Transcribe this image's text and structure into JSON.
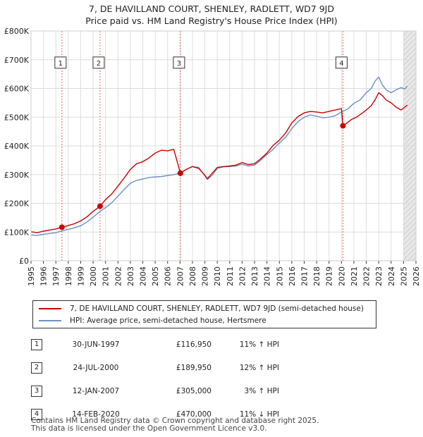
{
  "title_line1": "7, DE HAVILLAND COURT, SHENLEY, RADLETT, WD7 9JD",
  "title_line2": "Price paid vs. HM Land Registry's House Price Index (HPI)",
  "chart_data": {
    "type": "line",
    "title": "7, DE HAVILLAND COURT, SHENLEY, RADLETT, WD7 9JD — Price paid vs. HM Land Registry's House Price Index (HPI)",
    "xlim": [
      1995,
      2026
    ],
    "ylim": [
      0,
      800000
    ],
    "x_ticks": [
      1995,
      1996,
      1997,
      1998,
      1999,
      2000,
      2001,
      2002,
      2003,
      2004,
      2005,
      2006,
      2007,
      2008,
      2009,
      2010,
      2011,
      2012,
      2013,
      2014,
      2015,
      2016,
      2017,
      2018,
      2019,
      2020,
      2021,
      2022,
      2023,
      2024,
      2025,
      2026
    ],
    "y_ticks": [
      0,
      100000,
      200000,
      300000,
      400000,
      500000,
      600000,
      700000,
      800000
    ],
    "y_tick_labels": [
      "£0",
      "£100K",
      "£200K",
      "£300K",
      "£400K",
      "£500K",
      "£600K",
      "£700K",
      "£800K"
    ],
    "colors": {
      "property": "#cc0000",
      "hpi": "#6a90c0",
      "future_shade": "#e8e8e8"
    },
    "series": [
      {
        "name": "7, DE HAVILLAND COURT, SHENLEY, RADLETT, WD7 9JD (semi-detached house)",
        "x": [
          1995.0,
          1995.5,
          1996.0,
          1996.5,
          1997.0,
          1997.49,
          1998.0,
          1998.5,
          1999.0,
          1999.5,
          2000.0,
          2000.56,
          2001.0,
          2001.5,
          2002.0,
          2002.5,
          2003.0,
          2003.5,
          2004.0,
          2004.5,
          2005.0,
          2005.5,
          2006.0,
          2006.5,
          2007.03,
          2007.5,
          2008.0,
          2008.5,
          2009.0,
          2009.2,
          2009.6,
          2010.0,
          2010.5,
          2011.0,
          2011.5,
          2012.0,
          2012.5,
          2013.0,
          2013.5,
          2014.0,
          2014.5,
          2015.0,
          2015.5,
          2016.0,
          2016.5,
          2017.0,
          2017.5,
          2018.0,
          2018.5,
          2019.0,
          2019.5,
          2020.0,
          2020.12,
          2020.4,
          2020.8,
          2021.2,
          2021.6,
          2022.0,
          2022.4,
          2022.7,
          2023.0,
          2023.3,
          2023.6,
          2024.0,
          2024.4,
          2024.8,
          2025.1,
          2025.3
        ],
        "y": [
          101000,
          98000,
          103000,
          107000,
          111000,
          116950,
          123000,
          129000,
          139000,
          153000,
          172000,
          189950,
          213000,
          233000,
          260000,
          288000,
          318000,
          338000,
          345000,
          358000,
          375000,
          385000,
          383000,
          388000,
          305000,
          318000,
          328000,
          322000,
          298000,
          286000,
          305000,
          325000,
          328000,
          330000,
          333000,
          342000,
          335000,
          338000,
          355000,
          375000,
          402000,
          420000,
          445000,
          480000,
          502000,
          515000,
          520000,
          518000,
          515000,
          520000,
          525000,
          530000,
          470000,
          478000,
          492000,
          500000,
          512000,
          525000,
          540000,
          560000,
          585000,
          575000,
          560000,
          550000,
          535000,
          525000,
          535000,
          542000
        ]
      },
      {
        "name": "HPI: Average price, semi-detached house, Hertsmere",
        "x": [
          1995.0,
          1995.5,
          1996.0,
          1996.5,
          1997.0,
          1997.5,
          1998.0,
          1998.5,
          1999.0,
          1999.5,
          2000.0,
          2000.5,
          2001.0,
          2001.5,
          2002.0,
          2002.5,
          2003.0,
          2003.5,
          2004.0,
          2004.5,
          2005.0,
          2005.5,
          2006.0,
          2006.5,
          2007.0,
          2007.5,
          2008.0,
          2008.5,
          2009.0,
          2009.2,
          2009.6,
          2010.0,
          2010.5,
          2011.0,
          2011.5,
          2012.0,
          2012.5,
          2013.0,
          2013.5,
          2014.0,
          2014.5,
          2015.0,
          2015.5,
          2016.0,
          2016.5,
          2017.0,
          2017.5,
          2018.0,
          2018.5,
          2019.0,
          2019.5,
          2020.0,
          2020.5,
          2021.0,
          2021.5,
          2022.0,
          2022.4,
          2022.7,
          2023.0,
          2023.3,
          2023.6,
          2024.0,
          2024.4,
          2024.8,
          2025.1,
          2025.3
        ],
        "y": [
          90000,
          88000,
          92000,
          95000,
          98000,
          104000,
          109000,
          115000,
          122000,
          135000,
          152000,
          170000,
          185000,
          202000,
          225000,
          248000,
          270000,
          280000,
          285000,
          290000,
          292000,
          293000,
          297000,
          300000,
          305000,
          318000,
          328000,
          325000,
          296000,
          283000,
          298000,
          322000,
          327000,
          328000,
          330000,
          336000,
          330000,
          333000,
          350000,
          370000,
          388000,
          410000,
          430000,
          460000,
          485000,
          500000,
          508000,
          503000,
          498000,
          500000,
          505000,
          518000,
          528000,
          548000,
          560000,
          585000,
          600000,
          625000,
          640000,
          612000,
          595000,
          585000,
          595000,
          603000,
          598000,
          608000
        ]
      }
    ],
    "sale_markers": [
      {
        "label": "1",
        "x": 1997.49,
        "y": 116950
      },
      {
        "label": "2",
        "x": 2000.56,
        "y": 189950
      },
      {
        "label": "3",
        "x": 2007.03,
        "y": 305000
      },
      {
        "label": "4",
        "x": 2020.12,
        "y": 470000
      }
    ],
    "marker_box_value": 690000,
    "future_shade_from": 2025.0
  },
  "legend": {
    "property_label": "7, DE HAVILLAND COURT, SHENLEY, RADLETT, WD7 9JD (semi-detached house)",
    "hpi_label": "HPI: Average price, semi-detached house, Hertsmere"
  },
  "sales_table": [
    {
      "num": "1",
      "date": "30-JUN-1997",
      "price": "£116,950",
      "hpi": "11% ↑ HPI"
    },
    {
      "num": "2",
      "date": "24-JUL-2000",
      "price": "£189,950",
      "hpi": "12% ↑ HPI"
    },
    {
      "num": "3",
      "date": "12-JAN-2007",
      "price": "£305,000",
      "hpi": "3% ↑ HPI"
    },
    {
      "num": "4",
      "date": "14-FEB-2020",
      "price": "£470,000",
      "hpi": "11% ↓ HPI"
    }
  ],
  "footer": {
    "line1": "Contains HM Land Registry data © Crown copyright and database right 2025.",
    "line2": "This data is licensed under the Open Government Licence v3.0."
  }
}
